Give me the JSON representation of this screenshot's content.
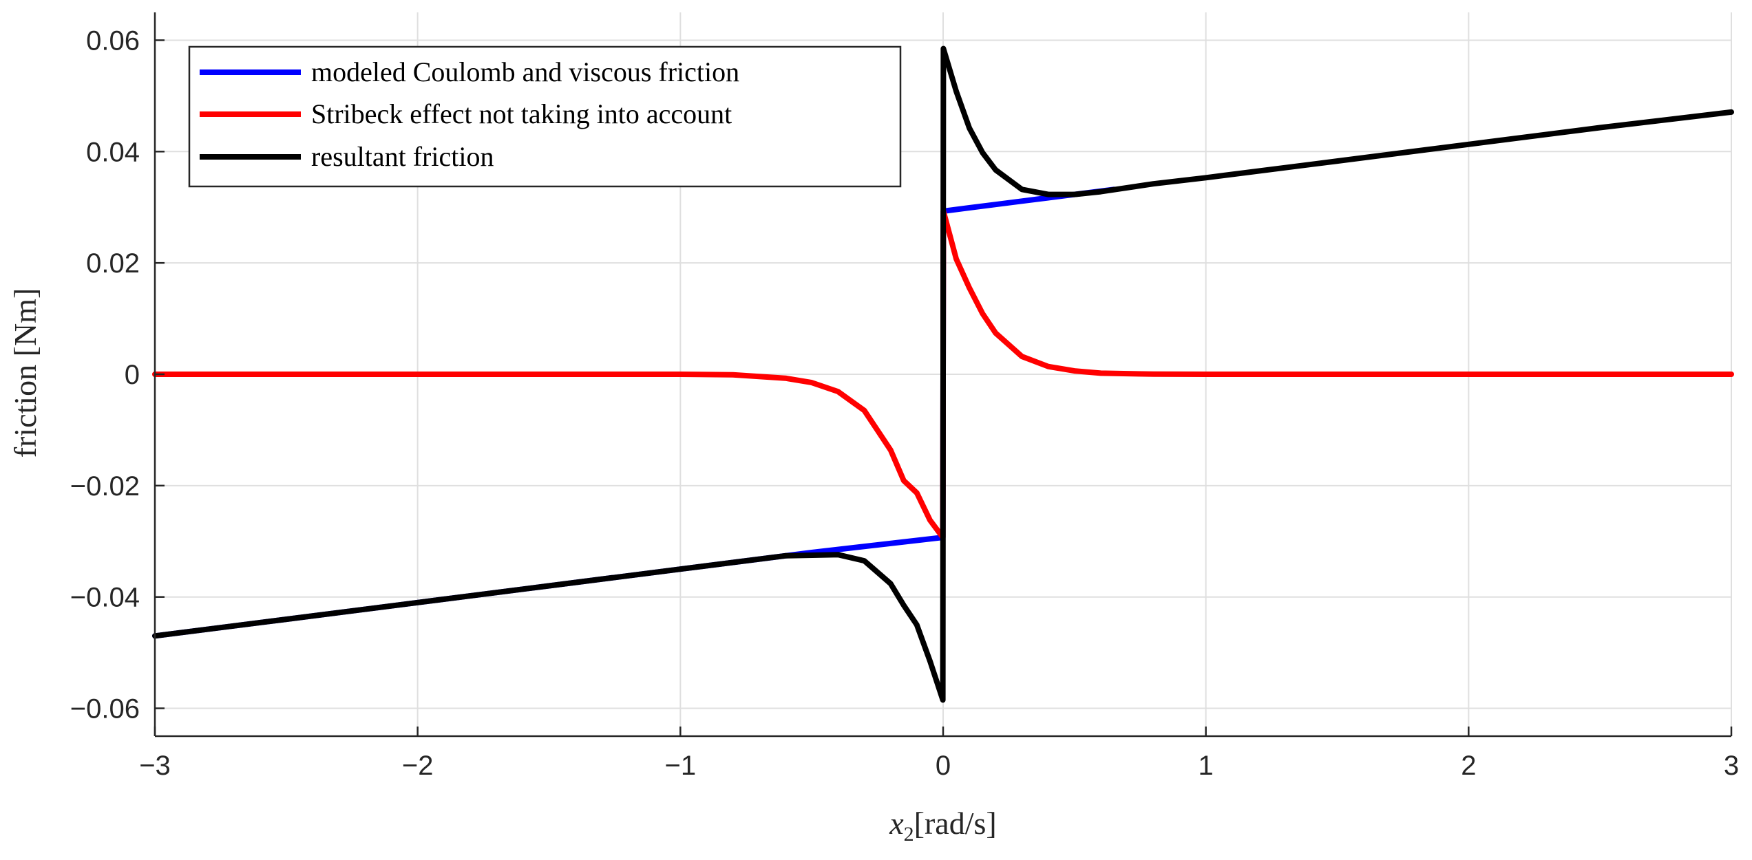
{
  "chart_data": {
    "type": "line",
    "xlabel": {
      "var": "x",
      "sub": "2",
      "unit": "[rad/s]"
    },
    "ylabel": {
      "text": "friction",
      "unit": "[Nm]"
    },
    "xlim": [
      -3,
      3
    ],
    "ylim": [
      -0.065,
      0.065
    ],
    "xticks": [
      -3,
      -2,
      -1,
      0,
      1,
      2,
      3
    ],
    "yticks": [
      -0.06,
      -0.04,
      -0.02,
      0,
      0.02,
      0.04,
      0.06
    ],
    "xtick_labels": [
      "−3",
      "−2",
      "−1",
      "0",
      "1",
      "2",
      "3"
    ],
    "ytick_labels": [
      "−0.06",
      "−0.04",
      "−0.02",
      "0",
      "0.02",
      "0.04",
      "0.06"
    ],
    "grid": true,
    "legend_position": "top-left",
    "series": [
      {
        "name": "modeled Coulomb and viscous friction",
        "color": "#0000ff",
        "x": [
          -3,
          -2.5,
          -2,
          -1.5,
          -1,
          -0.5,
          -0.001,
          0.001,
          0.1,
          0.2,
          0.3,
          0.4,
          0.5,
          0.65
        ],
        "y": [
          -0.047,
          -0.044,
          -0.041,
          -0.038,
          -0.035,
          -0.032,
          -0.0293,
          0.0293,
          0.0299,
          0.0305,
          0.0311,
          0.0317,
          0.0323,
          0.0332
        ]
      },
      {
        "name": "Stribeck effect not taking into account",
        "color": "#ff0000",
        "x": [
          -3,
          -1,
          -0.8,
          -0.6,
          -0.5,
          -0.4,
          -0.3,
          -0.2,
          -0.15,
          -0.1,
          -0.05,
          -0.001,
          0.001,
          0.05,
          0.1,
          0.15,
          0.2,
          0.3,
          0.4,
          0.5,
          0.6,
          0.8,
          1,
          3
        ],
        "y": [
          0,
          0,
          -0.0001,
          -0.0007,
          -0.0015,
          -0.0031,
          -0.0065,
          -0.0136,
          -0.0191,
          -0.0213,
          -0.0262,
          -0.0293,
          0.0293,
          0.0207,
          0.0155,
          0.0109,
          0.0074,
          0.0032,
          0.0014,
          0.0006,
          0.0002,
          3e-05,
          0,
          0
        ]
      },
      {
        "name": "resultant friction",
        "color": "#000000",
        "x": [
          -3,
          -2.5,
          -2,
          -1.5,
          -1,
          -0.6,
          -0.4,
          -0.3,
          -0.2,
          -0.15,
          -0.1,
          -0.05,
          -0.001,
          0.001,
          0.05,
          0.1,
          0.15,
          0.2,
          0.3,
          0.4,
          0.5,
          0.6,
          0.8,
          1,
          1.5,
          2,
          2.5,
          3
        ],
        "y": [
          -0.047,
          -0.044,
          -0.041,
          -0.038,
          -0.035,
          -0.0326,
          -0.0324,
          -0.0335,
          -0.0376,
          -0.0415,
          -0.045,
          -0.0515,
          -0.0585,
          0.0585,
          0.0508,
          0.0442,
          0.0398,
          0.0367,
          0.0332,
          0.0323,
          0.0323,
          0.0328,
          0.0342,
          0.0353,
          0.0383,
          0.0413,
          0.0443,
          0.0471
        ]
      }
    ]
  }
}
